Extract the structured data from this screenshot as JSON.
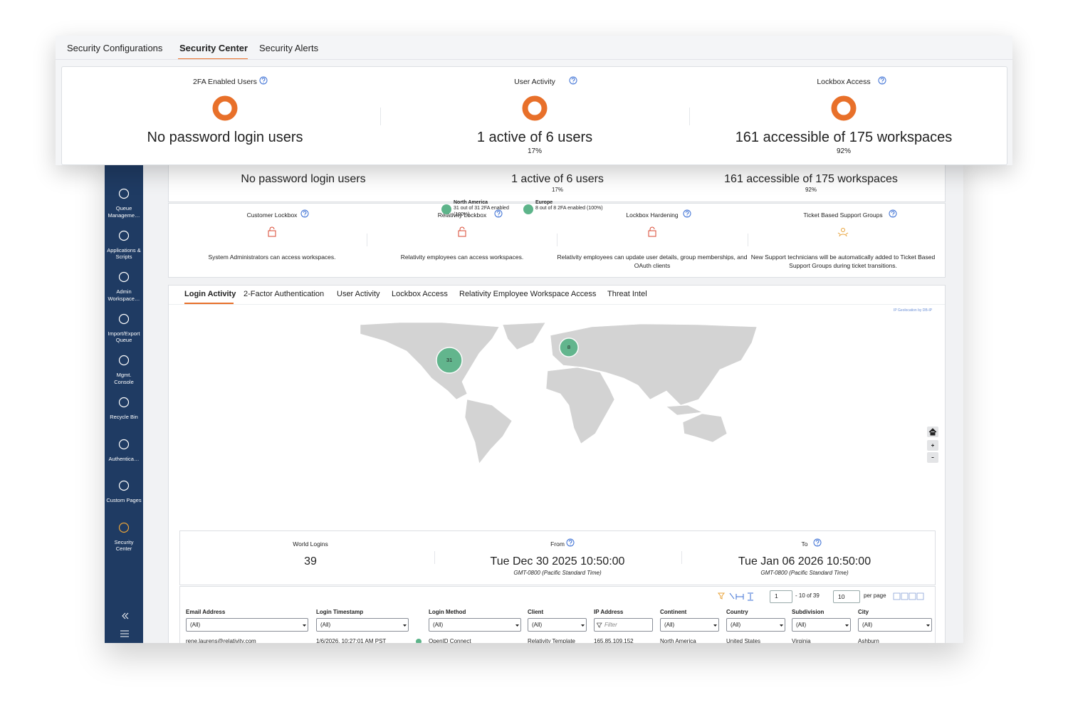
{
  "tabs": {
    "items": [
      "Security Configurations",
      "Security Center",
      "Security Alerts"
    ],
    "active": 1
  },
  "summary_cards": [
    {
      "title": "2FA Enabled Users",
      "value": "No password login users"
    },
    {
      "title": "User Activity",
      "value": "1 active of 6 users",
      "percent": "17%"
    },
    {
      "title": "Lockbox Access",
      "value": "161 accessible of 175 workspaces",
      "percent": "92%"
    }
  ],
  "sidebar": [
    "Queue Manageme…",
    "Applications & Scripts",
    "Admin Workspace…",
    "Import/Export Queue",
    "Mgmt. Console",
    "Recycle Bin",
    "Authentica…",
    "Custom Pages",
    "Security Center"
  ],
  "lockbox": [
    {
      "title": "Customer Lockbox",
      "description": "System Administrators can access workspaces."
    },
    {
      "title": "Relativity Lockbox",
      "description": "Relativity employees can access workspaces."
    },
    {
      "title": "Lockbox Hardening",
      "description": "Relativity employees can update user details, group memberships, and OAuth clients"
    },
    {
      "title": "Ticket Based Support Groups",
      "description": "New Support technicians will be automatically added to Ticket Based Support Groups during ticket transitions."
    }
  ],
  "detail_tabs": {
    "items": [
      "Login Activity",
      "2-Factor Authentication",
      "User Activity",
      "Lockbox Access",
      "Relativity Employee Workspace Access",
      "Threat Intel"
    ],
    "active": 0
  },
  "map": {
    "attribution": "IP Geolocation by DB-IP",
    "clusters": [
      31,
      8
    ],
    "legend": [
      {
        "name": "North America",
        "detail": "31 out of 31 2FA enabled (100%)"
      },
      {
        "name": "Europe",
        "detail": "8 out of 8 2FA enabled (100%)"
      }
    ]
  },
  "stats": [
    {
      "label": "World Logins",
      "value": 39
    },
    {
      "label": "From",
      "value": "Tue Dec 30 2025 10:50:00",
      "note": "GMT-0800 (Pacific Standard Time)"
    },
    {
      "label": "To",
      "value": "Tue Jan 06 2026 10:50:00",
      "note": "GMT-0800 (Pacific Standard Time)"
    }
  ],
  "pager": {
    "page": "1",
    "range": "- 10 of 39",
    "page_size": "10",
    "per_page": "per page"
  },
  "table": {
    "columns": [
      "Email Address",
      "Login Timestamp",
      "Login Method",
      "Client",
      "IP Address",
      "Continent",
      "Country",
      "Subdivision",
      "City"
    ],
    "filters": [
      "(All)",
      "(All)",
      "(All)",
      "(All)",
      "Filter",
      "(All)",
      "(All)",
      "(All)",
      "(All)"
    ],
    "rows": [
      [
        "rene.laurens@relativity.com",
        "1/6/2026, 10:27:01 AM PST",
        "OpenID Connect",
        "Relativity Template",
        "165.85.109.152",
        "North America",
        "United States",
        "Virginia",
        "Ashburn"
      ]
    ]
  }
}
